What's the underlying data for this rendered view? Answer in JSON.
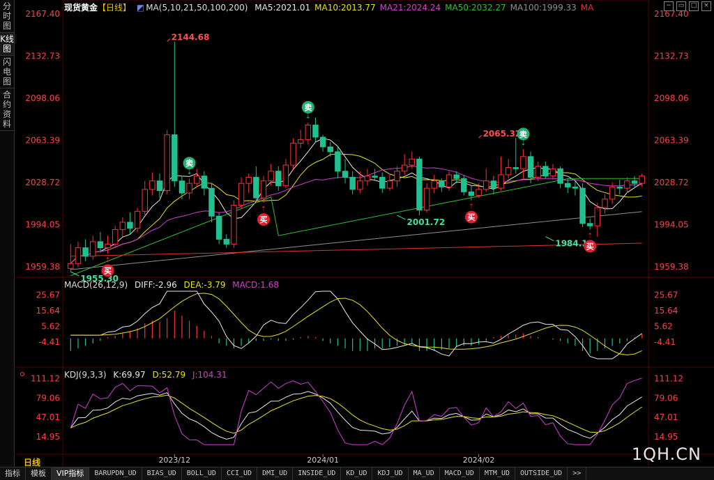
{
  "sidebar": {
    "tabs": [
      {
        "label": "分时图"
      },
      {
        "label": "K线图"
      },
      {
        "label": "闪电图"
      },
      {
        "label": "合约资料"
      }
    ],
    "active": 1
  },
  "header": {
    "instrument": "现货黄金",
    "period_tag": "【日线】",
    "ma_title": "MA(5,10,21,50,100,200)",
    "ma_items": [
      {
        "text": "MA5:2021.01",
        "color": "#e8e8e8"
      },
      {
        "text": "MA10:2013.77",
        "color": "#e8e020"
      },
      {
        "text": "MA21:2024.24",
        "color": "#d040d0"
      },
      {
        "text": "MA50:2032.27",
        "color": "#30c030"
      },
      {
        "text": "MA100:1999.33",
        "color": "#909090"
      },
      {
        "text": "MA",
        "color": "#e03030"
      }
    ]
  },
  "price_axis": {
    "ticks": [
      "2167.40",
      "2132.73",
      "2098.06",
      "2063.39",
      "2028.72",
      "1994.05",
      "1959.38"
    ],
    "min": 1955.3,
    "max": 2167.4
  },
  "annotations": [
    {
      "text": "2144.68",
      "price": 2144.68,
      "bar": 13,
      "color": "#ff5050"
    },
    {
      "text": "1955.30",
      "price": 1955.3,
      "bar": 0,
      "color": "#40e0a0"
    },
    {
      "text": "2065.32",
      "price": 2065.32,
      "bar": 55,
      "color": "#ff5050"
    },
    {
      "text": "2001.72",
      "price": 2001.72,
      "bar": 44,
      "color": "#40e0a0"
    },
    {
      "text": "1984.12",
      "price": 1984.12,
      "bar": 64,
      "color": "#40e0a0"
    }
  ],
  "signals": [
    {
      "type": "buy",
      "label": "买",
      "bar": 5
    },
    {
      "type": "sell",
      "label": "卖",
      "bar": 16
    },
    {
      "type": "buy",
      "label": "买",
      "bar": 26
    },
    {
      "type": "sell",
      "label": "卖",
      "bar": 32
    },
    {
      "type": "buy",
      "label": "买",
      "bar": 54
    },
    {
      "type": "sell",
      "label": "卖",
      "bar": 61
    },
    {
      "type": "buy",
      "label": "买",
      "bar": 70
    }
  ],
  "macd": {
    "title": "MACD(26,12,9)",
    "diff": "DIFF:-2.96",
    "dea": "DEA:-3.79",
    "macd": "MACD:1.68",
    "ticks": [
      "25.67",
      "15.64",
      "5.62",
      "-4.41"
    ]
  },
  "kdj": {
    "title": "KDJ(9,3,3)",
    "k": "K:69.97",
    "d": "D:52.79",
    "j": "J:104.31",
    "ticks": [
      "111.12",
      "79.06",
      "47.01",
      "14.95"
    ]
  },
  "date_labels": [
    {
      "text": "2023/12",
      "bar": 14
    },
    {
      "text": "2024/01",
      "bar": 34
    },
    {
      "text": "2024/02",
      "bar": 55
    }
  ],
  "period_label": "日线",
  "watermark": "1QH.CN",
  "bottom_tabs": [
    "指标",
    "模板",
    "VIP指标",
    "BARUPDN_UD",
    "BIAS_UD",
    "BOLL_UD",
    "CCI_UD",
    "DMI_UD",
    "INSIDE_UD",
    "KD_UD",
    "KDJ_UD",
    "MA_UD",
    "MACD_UD",
    "MTM_UD",
    "OUTSIDE_UD",
    ">>"
  ],
  "bottom_active": 2,
  "colors": {
    "up": "#ff3030",
    "down": "#20c090",
    "buy_bg": "#e02030",
    "sell_bg": "#20b070"
  },
  "chart_data": {
    "type": "candlestick",
    "candles": [
      [
        1958,
        1962,
        1978,
        1955.3
      ],
      [
        1962,
        1975,
        1980,
        1959
      ],
      [
        1975,
        1968,
        1982,
        1964
      ],
      [
        1968,
        1980,
        1985,
        1965
      ],
      [
        1980,
        1975,
        1988,
        1971
      ],
      [
        1975,
        1978,
        1985,
        1970
      ],
      [
        1978,
        1990,
        1993,
        1975
      ],
      [
        1990,
        1996,
        2000,
        1984
      ],
      [
        1996,
        1991,
        2004,
        1986
      ],
      [
        1991,
        2005,
        2008,
        1988
      ],
      [
        2005,
        2023,
        2030,
        2002
      ],
      [
        2023,
        2030,
        2037,
        2018
      ],
      [
        2030,
        2022,
        2036,
        2016
      ],
      [
        2022,
        2068,
        2072,
        2019
      ],
      [
        2068,
        2030,
        2144.68,
        2025
      ],
      [
        2030,
        2020,
        2034,
        2015
      ],
      [
        2020,
        2028,
        2032,
        2015
      ],
      [
        2028,
        2034,
        2040,
        2025
      ],
      [
        2034,
        2024,
        2038,
        2018
      ],
      [
        2024,
        2001,
        2028,
        1996
      ],
      [
        2001,
        1982,
        2004,
        1978
      ],
      [
        1982,
        1978,
        1986,
        1975
      ],
      [
        1978,
        2010,
        2014,
        1975
      ],
      [
        2010,
        2028,
        2033,
        2007
      ],
      [
        2028,
        2033,
        2036,
        2020
      ],
      [
        2033,
        2016,
        2042,
        2013
      ],
      [
        2016,
        2030,
        2034,
        2012
      ],
      [
        2030,
        2038,
        2044,
        2026
      ],
      [
        2038,
        2026,
        2042,
        2022
      ],
      [
        2026,
        2043,
        2048,
        2024
      ],
      [
        2043,
        2061,
        2065,
        2040
      ],
      [
        2061,
        2064,
        2072,
        2057
      ],
      [
        2064,
        2076,
        2078,
        2060
      ],
      [
        2076,
        2066,
        2082,
        2062
      ],
      [
        2066,
        2058,
        2068,
        2054
      ],
      [
        2058,
        2054,
        2062,
        2050
      ],
      [
        2054,
        2038,
        2058,
        2032
      ],
      [
        2038,
        2033,
        2048,
        2028
      ],
      [
        2033,
        2023,
        2038,
        2019
      ],
      [
        2023,
        2030,
        2038,
        2020
      ],
      [
        2030,
        2034,
        2040,
        2026
      ],
      [
        2034,
        2033,
        2040,
        2030
      ],
      [
        2033,
        2024,
        2037,
        2020
      ],
      [
        2024,
        2030,
        2036,
        2022
      ],
      [
        2030,
        2038,
        2042,
        2025
      ],
      [
        2038,
        2043,
        2052,
        2035
      ],
      [
        2043,
        2048,
        2054,
        2040
      ],
      [
        2048,
        2006,
        2050,
        2001.72
      ],
      [
        2006,
        2024,
        2028,
        2004
      ],
      [
        2024,
        2030,
        2035,
        2020
      ],
      [
        2030,
        2025,
        2032,
        2021
      ],
      [
        2025,
        2035,
        2038,
        2022
      ],
      [
        2035,
        2032,
        2038,
        2028
      ],
      [
        2032,
        2021,
        2035,
        2018
      ],
      [
        2021,
        2018,
        2026,
        2014
      ],
      [
        2018,
        2023,
        2028,
        2016
      ],
      [
        2023,
        2030,
        2040,
        2021
      ],
      [
        2030,
        2024,
        2034,
        2019
      ],
      [
        2024,
        2035,
        2050,
        2022
      ],
      [
        2035,
        2041,
        2048,
        2032
      ],
      [
        2041,
        2040,
        2065.32,
        2036
      ],
      [
        2040,
        2050,
        2056,
        2031
      ],
      [
        2050,
        2033,
        2054,
        2028
      ],
      [
        2033,
        2042,
        2046,
        2030
      ],
      [
        2042,
        2034,
        2046,
        2032
      ],
      [
        2034,
        2040,
        2044,
        2031
      ],
      [
        2040,
        2028,
        2042,
        2024
      ],
      [
        2028,
        2025,
        2032,
        2020
      ],
      [
        2025,
        2024,
        2030,
        2018
      ],
      [
        2024,
        1995,
        2028,
        1992
      ],
      [
        1995,
        1993,
        1999,
        1990
      ],
      [
        1993,
        2008,
        2012,
        1984.12
      ],
      [
        2008,
        2015,
        2019,
        2003
      ],
      [
        2015,
        2025,
        2029,
        2011
      ],
      [
        2025,
        2024,
        2031,
        2019
      ],
      [
        2024,
        2030,
        2033,
        2020
      ],
      [
        2030,
        2028,
        2034,
        2024
      ],
      [
        2028,
        2034,
        2036,
        2025
      ]
    ],
    "macd_hist": [
      -5,
      -4,
      -3,
      -2,
      -1,
      0.5,
      1,
      2,
      3,
      4,
      6,
      7,
      6.5,
      8,
      11,
      9,
      7,
      5,
      3,
      1,
      -2,
      -3,
      -4,
      -3,
      -2,
      -1,
      -1,
      -0.5,
      -1,
      -1,
      -0.5,
      0.5,
      1,
      0.5,
      -1,
      -2,
      -3,
      -4,
      -5,
      -5,
      -5,
      -4,
      -4,
      -3.5,
      -3,
      -2.5,
      -2,
      -5,
      -5,
      -5,
      -4.5,
      -4,
      -3.5,
      -3,
      -3,
      -2.5,
      -1,
      0.5,
      1,
      1.5,
      1.5,
      2,
      1,
      0.5,
      0,
      -0.5,
      -1,
      -2,
      -3,
      -5,
      -6,
      -5,
      -4,
      -3,
      -2,
      -1,
      0.5,
      1.68
    ],
    "price_range": [
      1955.3,
      2167.4
    ],
    "macd_range": [
      -15,
      28
    ],
    "kdj_range": [
      0,
      115
    ]
  }
}
